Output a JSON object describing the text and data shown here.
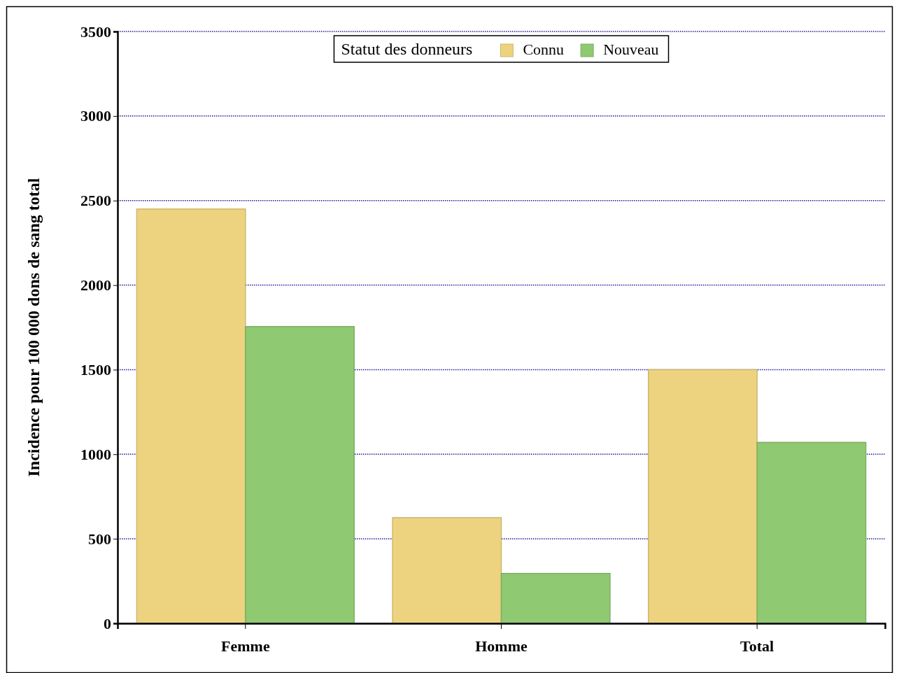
{
  "chart_data": {
    "type": "bar",
    "ylabel": "Incidence pour 100 000 dons de sang total",
    "categories": [
      "Femme",
      "Homme",
      "Total"
    ],
    "series": [
      {
        "name": "Connu",
        "color": "#edd37f",
        "values": [
          2450,
          625,
          1500
        ]
      },
      {
        "name": "Nouveau",
        "color": "#8fc971",
        "values": [
          1755,
          295,
          1070
        ]
      }
    ],
    "ylim": [
      0,
      3500
    ],
    "yticks": [
      0,
      500,
      1000,
      1500,
      2000,
      2500,
      3000,
      3500
    ],
    "grid": "y",
    "legend": "top",
    "legend_title": "Statut des donneurs"
  }
}
